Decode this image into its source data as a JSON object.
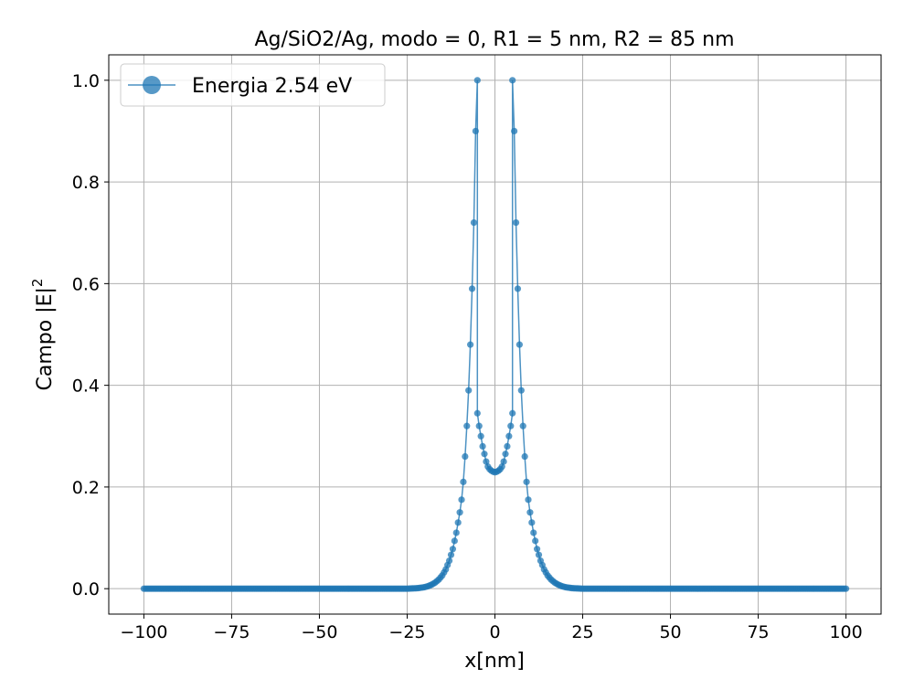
{
  "chart_data": {
    "type": "line",
    "title": "Ag/SiO2/Ag, modo = 0, R1 = 5 nm, R2 = 85 nm",
    "xlabel": "x[nm]",
    "ylabel": "Campo |E|",
    "ylabel_superscript": "2",
    "xlim": [
      -110,
      110
    ],
    "ylim": [
      -0.05,
      1.05
    ],
    "xticks": [
      -100,
      -75,
      -50,
      -25,
      0,
      25,
      50,
      75,
      100
    ],
    "xtick_labels": [
      "−100",
      "−75",
      "−50",
      "−25",
      "0",
      "25",
      "50",
      "75",
      "100"
    ],
    "yticks": [
      0.0,
      0.2,
      0.4,
      0.6,
      0.8,
      1.0
    ],
    "ytick_labels": [
      "0.0",
      "0.2",
      "0.4",
      "0.6",
      "0.8",
      "1.0"
    ],
    "grid": true,
    "legend_position": "top-left",
    "series": [
      {
        "name": "Energia 2.54 eV",
        "color": "#1f77b4",
        "marker": "circle",
        "x": [
          -100,
          -90,
          -80,
          -70,
          -60,
          -50,
          -40,
          -30,
          -25,
          -22,
          -20,
          -19,
          -18,
          -17,
          -16,
          -15,
          -14,
          -13,
          -12,
          -11,
          -10,
          -9.5,
          -9,
          -8.5,
          -8,
          -7.5,
          -7,
          -6.5,
          -6,
          -5.5,
          -5,
          -5,
          -4.5,
          -4,
          -3.5,
          -3,
          -2.5,
          -2,
          -1.5,
          -1,
          -0.5,
          0,
          0.5,
          1,
          1.5,
          2,
          2.5,
          3,
          3.5,
          4,
          4.5,
          5,
          5,
          5.5,
          6,
          6.5,
          7,
          7.5,
          8,
          8.5,
          9,
          9.5,
          10,
          11,
          12,
          13,
          14,
          15,
          16,
          17,
          18,
          19,
          20,
          22,
          25,
          30,
          40,
          50,
          60,
          70,
          80,
          90,
          100
        ],
        "y": [
          0,
          0,
          0,
          0,
          0,
          0,
          0,
          0,
          0,
          0.001,
          0.003,
          0.005,
          0.008,
          0.012,
          0.018,
          0.026,
          0.038,
          0.055,
          0.078,
          0.11,
          0.15,
          0.175,
          0.21,
          0.26,
          0.32,
          0.39,
          0.48,
          0.59,
          0.72,
          0.9,
          1.0,
          0.345,
          0.32,
          0.3,
          0.28,
          0.265,
          0.25,
          0.24,
          0.235,
          0.232,
          0.23,
          0.229,
          0.23,
          0.232,
          0.235,
          0.24,
          0.25,
          0.265,
          0.28,
          0.3,
          0.32,
          0.345,
          1.0,
          0.9,
          0.72,
          0.59,
          0.48,
          0.39,
          0.32,
          0.26,
          0.21,
          0.175,
          0.15,
          0.11,
          0.078,
          0.055,
          0.038,
          0.026,
          0.018,
          0.012,
          0.008,
          0.005,
          0.003,
          0.001,
          0,
          0,
          0,
          0,
          0,
          0,
          0,
          0,
          0
        ]
      }
    ]
  }
}
